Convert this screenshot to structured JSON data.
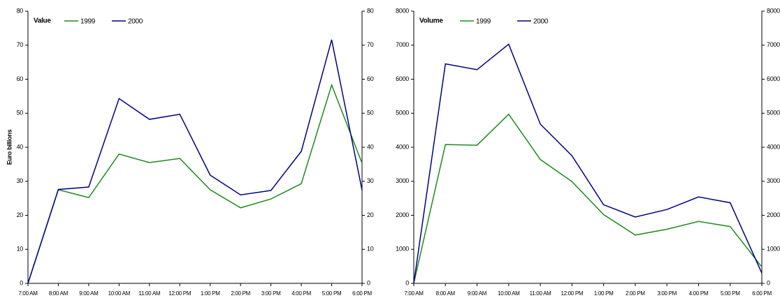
{
  "chart_data": [
    {
      "type": "line",
      "title": "Value",
      "y_label": "Euro billions",
      "categories": [
        "7:00 AM",
        "8:00 AM",
        "9:00 AM",
        "10:00 AM",
        "11:00 AM",
        "12:00 PM",
        "1:00 PM",
        "2:00 PM",
        "3:00 PM",
        "4:00 PM",
        "5:00 PM",
        "6:00 PM"
      ],
      "series": [
        {
          "name": "1999",
          "color": "#1f8a1f",
          "values": [
            0,
            27.5,
            25.2,
            38,
            35.5,
            36.7,
            27.5,
            22.2,
            24.8,
            29.3,
            58.3,
            35.3
          ]
        },
        {
          "name": "2000",
          "color": "#000080",
          "values": [
            0,
            27.6,
            28.3,
            54.3,
            48.2,
            49.7,
            31.8,
            26,
            27.3,
            38.8,
            71.6,
            27.4
          ]
        }
      ],
      "ylim": [
        0,
        80
      ],
      "yticks": [
        0,
        10,
        20,
        30,
        40,
        50,
        60,
        70,
        80
      ],
      "y2lim": [
        0,
        80
      ],
      "y2ticks": [
        0,
        10,
        20,
        30,
        40,
        50,
        60,
        70,
        80
      ]
    },
    {
      "type": "line",
      "title": "Volume",
      "categories": [
        "7:00 AM",
        "8:00 AM",
        "9:00 AM",
        "10:00 AM",
        "11:00 AM",
        "12:00 PM",
        "1:00 PM",
        "2:00 PM",
        "3:00 PM",
        "4:00 PM",
        "5:00 PM",
        "6:00 PM"
      ],
      "series": [
        {
          "name": "1999",
          "color": "#1f8a1f",
          "values": [
            0,
            4080,
            4060,
            4970,
            3640,
            2990,
            2020,
            1420,
            1590,
            1820,
            1670,
            480
          ]
        },
        {
          "name": "2000",
          "color": "#000080",
          "values": [
            0,
            6450,
            6280,
            7030,
            4680,
            3750,
            2310,
            1950,
            2170,
            2540,
            2370,
            300
          ]
        }
      ],
      "ylim": [
        0,
        8000
      ],
      "yticks": [
        0,
        1000,
        2000,
        3000,
        4000,
        5000,
        6000,
        7000,
        8000
      ],
      "y2lim": [
        0,
        8000
      ],
      "y2ticks": [
        0,
        1000,
        2000,
        3000,
        4000,
        5000,
        6000,
        7000,
        8000
      ]
    }
  ]
}
